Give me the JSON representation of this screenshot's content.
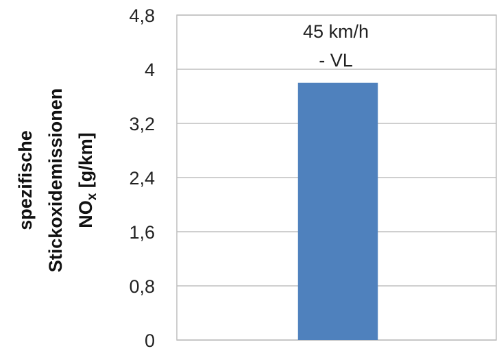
{
  "chart_data": {
    "type": "bar",
    "categories": [
      "45 km/h - VL"
    ],
    "values": [
      3.8
    ],
    "category_label_lines": [
      "45 km/h",
      "- VL"
    ],
    "ylabel_lines": [
      "spezifische",
      "Stickoxidemissionen",
      "NO",
      "x",
      " [g/km]"
    ],
    "ylim": [
      0,
      4.8
    ],
    "yticks": [
      0,
      0.8,
      1.6,
      2.4,
      3.2,
      4,
      4.8
    ],
    "ytick_labels": [
      "0",
      "0,8",
      "1,6",
      "2,4",
      "3,2",
      "4",
      "4,8"
    ],
    "grid": true,
    "colors": {
      "bar": "#4f81bd",
      "grid": "#bfbfbf",
      "frame": "#bfbfbf"
    }
  }
}
